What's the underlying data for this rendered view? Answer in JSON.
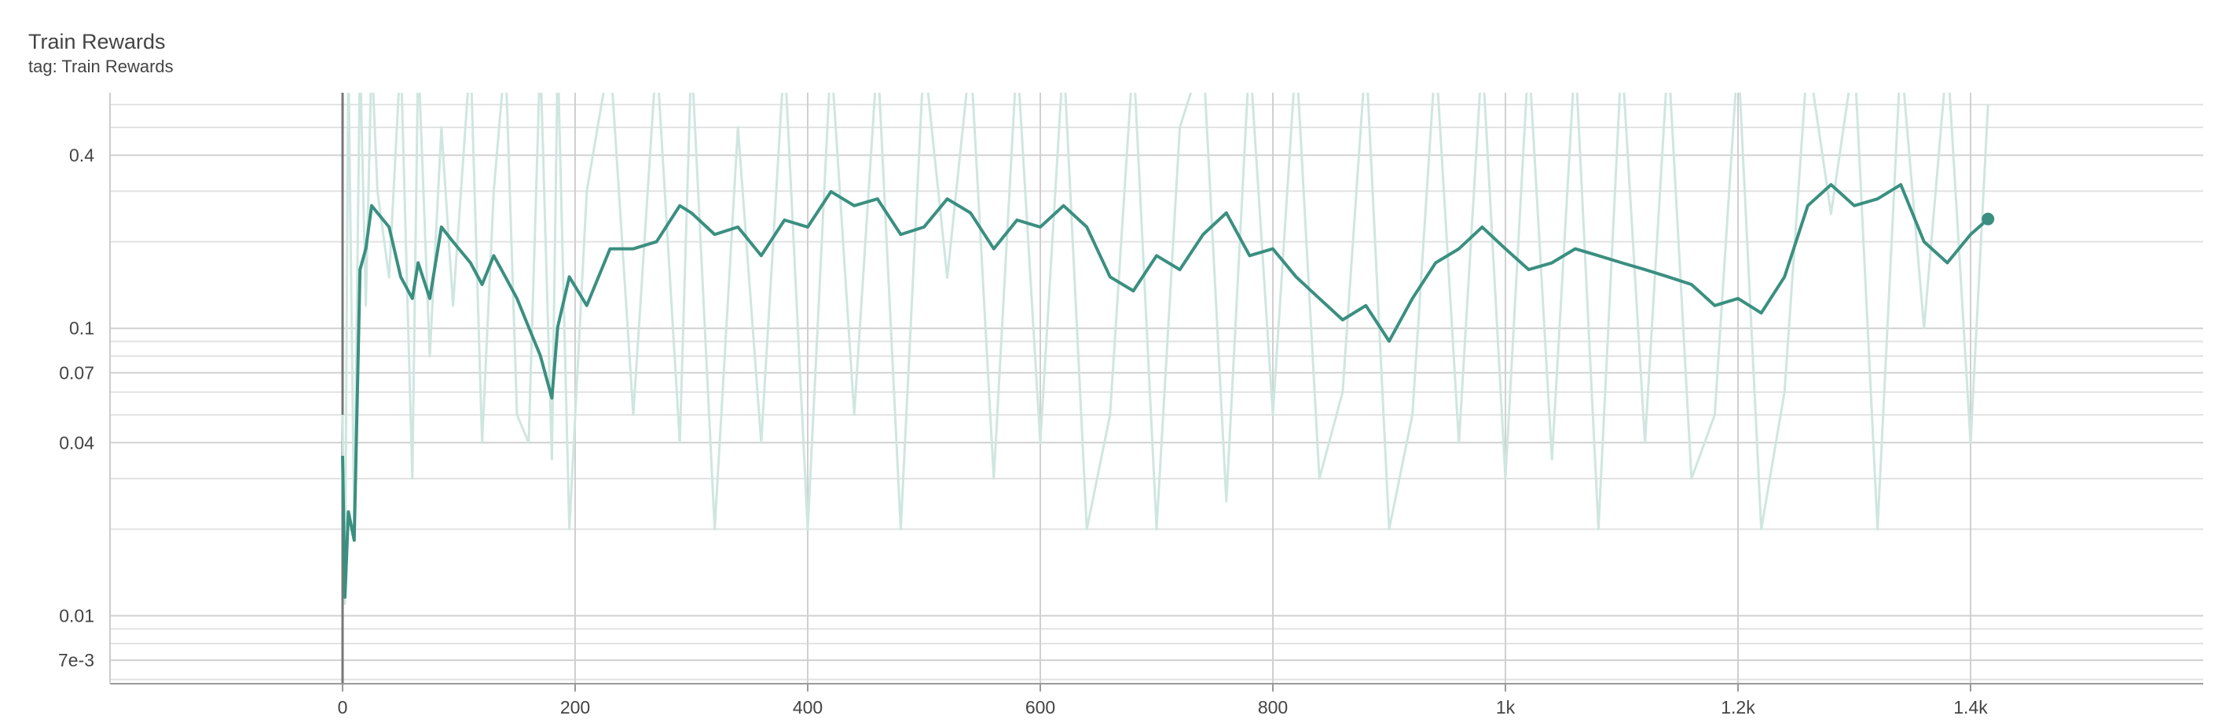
{
  "chart_data": {
    "type": "line",
    "title": "Train Rewards",
    "subtitle": "tag: Train Rewards",
    "log_y": true,
    "grid": true,
    "xlim": [
      -200,
      1600
    ],
    "ylim": [
      0.0058,
      0.66
    ],
    "xticks": [
      0,
      200,
      400,
      600,
      800,
      {
        "value": 1000,
        "label": "1k"
      },
      {
        "value": 1200,
        "label": "1.2k"
      },
      {
        "value": 1400,
        "label": "1.4k"
      }
    ],
    "yticks": [
      {
        "value": 0.007,
        "label": "7e-3"
      },
      0.01,
      0.04,
      0.07,
      0.1,
      0.4
    ],
    "y_minor_ticks": [
      0.006,
      0.008,
      0.009,
      0.02,
      0.03,
      0.05,
      0.06,
      0.08,
      0.09,
      0.2,
      0.3,
      0.5,
      0.6
    ],
    "x": [
      0,
      2,
      5,
      10,
      15,
      20,
      25,
      30,
      40,
      50,
      60,
      65,
      75,
      85,
      95,
      110,
      120,
      130,
      140,
      150,
      160,
      170,
      180,
      185,
      195,
      210,
      230,
      250,
      270,
      290,
      300,
      320,
      340,
      360,
      380,
      400,
      420,
      440,
      460,
      480,
      500,
      520,
      540,
      560,
      580,
      600,
      620,
      640,
      660,
      680,
      700,
      720,
      740,
      760,
      780,
      800,
      820,
      840,
      860,
      880,
      900,
      920,
      940,
      960,
      980,
      1000,
      1020,
      1040,
      1060,
      1080,
      1100,
      1120,
      1140,
      1160,
      1180,
      1200,
      1220,
      1240,
      1260,
      1280,
      1300,
      1320,
      1340,
      1360,
      1380,
      1400,
      1415
    ],
    "series": [
      {
        "color": "#cfe6e0",
        "values": [
          0.05,
          0.011,
          0.9,
          0.02,
          0.9,
          0.12,
          0.9,
          0.3,
          0.15,
          0.9,
          0.03,
          0.9,
          0.08,
          0.5,
          0.12,
          0.9,
          0.04,
          0.3,
          0.9,
          0.05,
          0.04,
          0.9,
          0.035,
          0.9,
          0.02,
          0.3,
          0.9,
          0.05,
          0.9,
          0.04,
          0.9,
          0.02,
          0.5,
          0.04,
          0.9,
          0.02,
          0.9,
          0.05,
          0.9,
          0.02,
          0.9,
          0.15,
          0.9,
          0.03,
          0.9,
          0.04,
          0.9,
          0.02,
          0.05,
          0.9,
          0.02,
          0.5,
          0.9,
          0.025,
          0.9,
          0.05,
          0.9,
          0.03,
          0.06,
          0.9,
          0.02,
          0.05,
          0.9,
          0.04,
          0.9,
          0.03,
          0.9,
          0.035,
          0.9,
          0.02,
          0.9,
          0.04,
          0.9,
          0.03,
          0.05,
          0.9,
          0.02,
          0.06,
          0.9,
          0.25,
          0.9,
          0.02,
          0.9,
          0.1,
          0.9,
          0.04,
          0.6
        ]
      },
      {
        "color": "#3a8f80",
        "values": [
          0.036,
          0.0116,
          0.023,
          0.0183,
          0.16,
          0.189,
          0.267,
          0.252,
          0.225,
          0.151,
          0.127,
          0.169,
          0.127,
          0.225,
          0.2,
          0.169,
          0.142,
          0.179,
          0.151,
          0.127,
          0.101,
          0.0805,
          0.0572,
          0.101,
          0.151,
          0.12,
          0.189,
          0.189,
          0.2,
          0.267,
          0.252,
          0.212,
          0.225,
          0.179,
          0.238,
          0.225,
          0.299,
          0.267,
          0.282,
          0.212,
          0.225,
          0.282,
          0.252,
          0.189,
          0.238,
          0.225,
          0.267,
          0.225,
          0.151,
          0.135,
          0.179,
          0.16,
          0.212,
          0.252,
          0.179,
          0.189,
          0.151,
          0.127,
          0.107,
          0.12,
          0.0902,
          0.127,
          0.169,
          0.189,
          0.225,
          0.189,
          0.16,
          0.169,
          0.189,
          0.179,
          0.169,
          0.16,
          0.151,
          0.142,
          0.12,
          0.127,
          0.113,
          0.151,
          0.267,
          0.316,
          0.267,
          0.282,
          0.316,
          0.2,
          0.169,
          0.212,
          0.24
        ]
      }
    ]
  }
}
